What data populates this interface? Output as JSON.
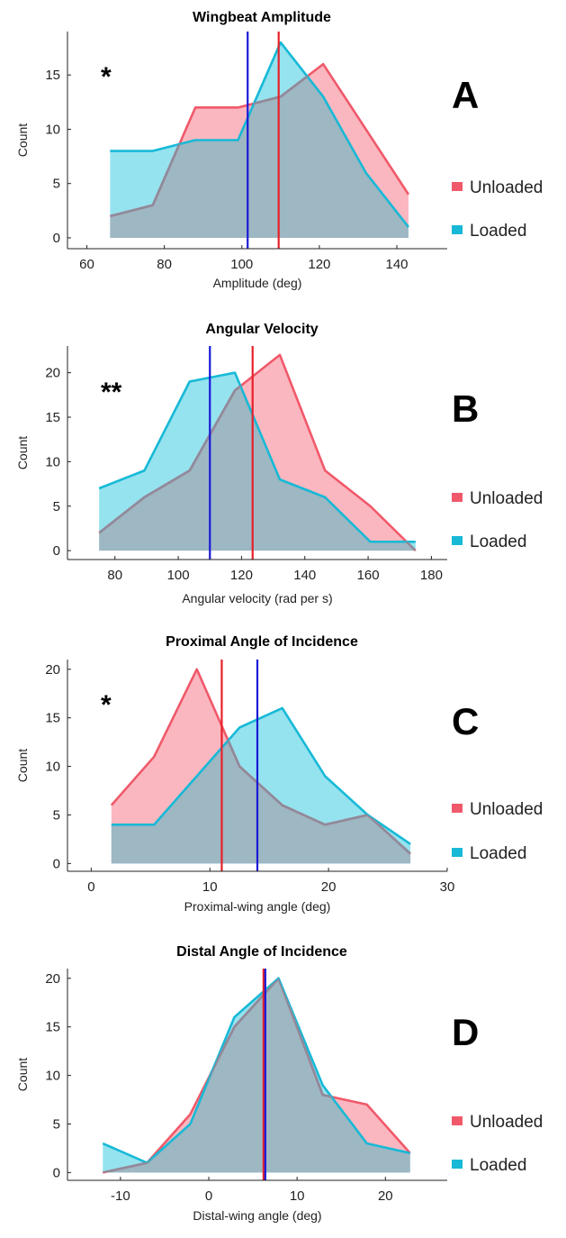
{
  "colors": {
    "unloaded_line": "#f0596a",
    "unloaded_fill": "#fbb7c0",
    "loaded_line": "#17b9d6",
    "loaded_fill": "#95e3ef",
    "overlap_fill": "#9db7c3",
    "unloaded_mean": "#e8202a",
    "loaded_mean": "#1a1ad6"
  },
  "legend": {
    "unloaded": "Unloaded",
    "loaded": "Loaded"
  },
  "chart_data": [
    {
      "type": "area",
      "panel": "A",
      "title": "Wingbeat Amplitude",
      "xlabel": "Amplitude (deg)",
      "ylabel": "Count",
      "significance": "*",
      "xlim": [
        55,
        153
      ],
      "ylim": [
        -1,
        19
      ],
      "xticks": [
        60,
        80,
        100,
        120,
        140
      ],
      "yticks": [
        0,
        5,
        10,
        15
      ],
      "x": [
        66,
        77,
        88,
        99,
        110,
        121,
        132,
        143
      ],
      "series": [
        {
          "name": "Unloaded",
          "values": [
            2,
            3,
            12,
            12,
            13,
            16,
            10,
            4
          ],
          "mean": 109.5
        },
        {
          "name": "Loaded",
          "values": [
            8,
            8,
            9,
            9,
            18,
            13,
            6,
            1
          ],
          "mean": 101.5
        }
      ],
      "legend_position": "right"
    },
    {
      "type": "area",
      "panel": "B",
      "title": "Angular Velocity",
      "xlabel": "Angular velocity (rad per s)",
      "ylabel": "Count",
      "significance": "**",
      "xlim": [
        65,
        185
      ],
      "ylim": [
        -1,
        23
      ],
      "xticks": [
        80,
        100,
        120,
        140,
        160,
        180
      ],
      "yticks": [
        0,
        5,
        10,
        15,
        20
      ],
      "x": [
        75,
        89.3,
        103.6,
        117.9,
        132.1,
        146.4,
        160.7,
        175
      ],
      "series": [
        {
          "name": "Unloaded",
          "values": [
            2,
            6,
            9,
            18,
            22,
            9,
            5,
            0
          ],
          "mean": 123.5
        },
        {
          "name": "Loaded",
          "values": [
            7,
            9,
            19,
            20,
            8,
            6,
            1,
            1
          ],
          "mean": 110
        }
      ],
      "legend_position": "right"
    },
    {
      "type": "area",
      "panel": "C",
      "title": "Proximal Angle of Incidence",
      "xlabel": "Proximal-wing angle (deg)",
      "ylabel": "Count",
      "significance": "*",
      "xlim": [
        -2,
        30
      ],
      "ylim": [
        -0.8,
        21
      ],
      "xticks": [
        0,
        10,
        20,
        30
      ],
      "yticks": [
        0,
        5,
        10,
        15,
        20
      ],
      "x": [
        1.7,
        5.3,
        8.9,
        12.5,
        16.1,
        19.7,
        23.3,
        26.9
      ],
      "series": [
        {
          "name": "Unloaded",
          "values": [
            6,
            11,
            20,
            10,
            6,
            4,
            5,
            1
          ],
          "mean": 11
        },
        {
          "name": "Loaded",
          "values": [
            4,
            4,
            9,
            14,
            16,
            9,
            5,
            2
          ],
          "mean": 14
        }
      ],
      "legend_position": "right"
    },
    {
      "type": "area",
      "panel": "D",
      "title": "Distal Angle of Incidence",
      "xlabel": "Distal-wing angle (deg)",
      "ylabel": "Count",
      "significance": "",
      "xlim": [
        -16,
        27
      ],
      "ylim": [
        -0.8,
        21
      ],
      "xticks": [
        -10,
        0,
        10,
        20
      ],
      "yticks": [
        0,
        5,
        10,
        15,
        20
      ],
      "x": [
        -12,
        -7,
        -2.1,
        2.9,
        7.9,
        12.9,
        17.9,
        22.8
      ],
      "series": [
        {
          "name": "Unloaded",
          "values": [
            0,
            1,
            6,
            15,
            20,
            8,
            7,
            2
          ],
          "mean": 6.2
        },
        {
          "name": "Loaded",
          "values": [
            3,
            1,
            5,
            16,
            20,
            9,
            3,
            2
          ],
          "mean": 6.4
        }
      ],
      "legend_position": "right"
    }
  ]
}
